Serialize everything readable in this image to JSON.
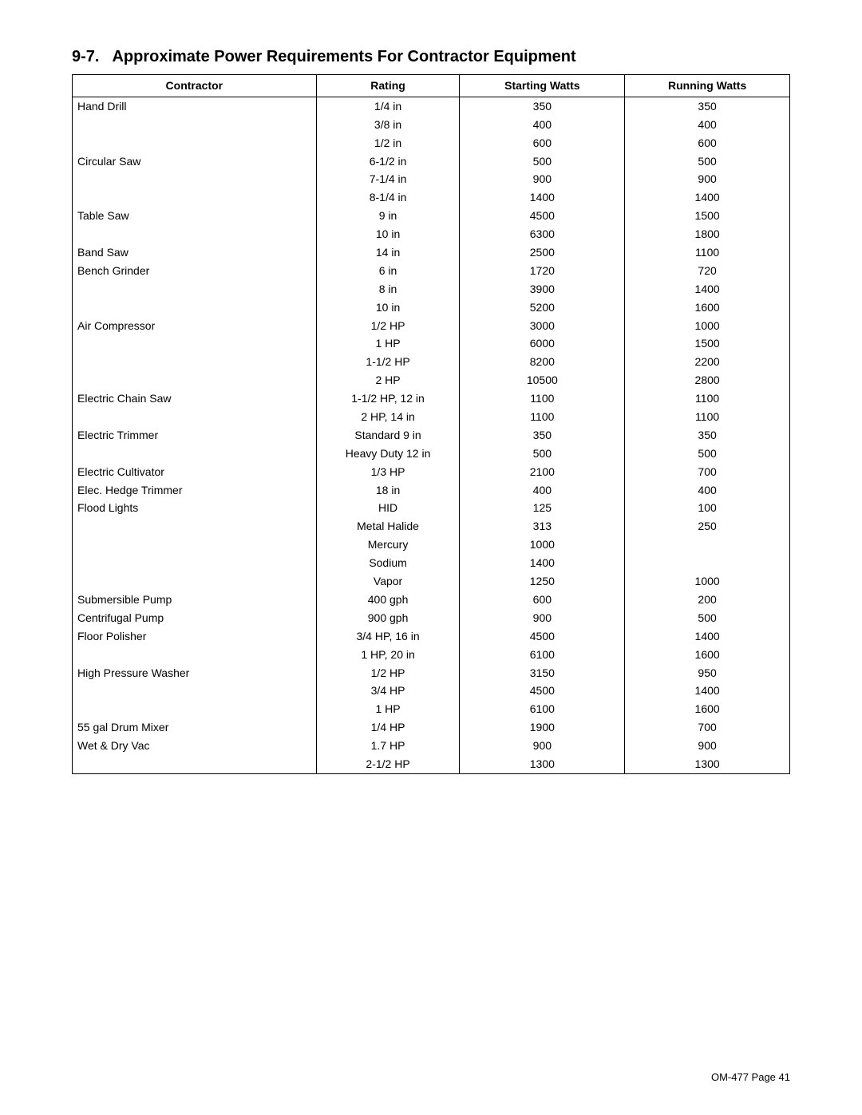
{
  "section": {
    "number": "9-7.",
    "title": "Approximate Power Requirements For Contractor Equipment"
  },
  "table": {
    "columns": [
      "Contractor",
      "Rating",
      "Starting Watts",
      "Running Watts"
    ],
    "rows": [
      {
        "contractor": "Hand Drill",
        "rating": "1/4 in",
        "starting": "350",
        "running": "350"
      },
      {
        "contractor": "",
        "rating": "3/8 in",
        "starting": "400",
        "running": "400"
      },
      {
        "contractor": "",
        "rating": "1/2 in",
        "starting": "600",
        "running": "600"
      },
      {
        "contractor": "Circular Saw",
        "rating": "6-1/2 in",
        "starting": "500",
        "running": "500"
      },
      {
        "contractor": "",
        "rating": "7-1/4 in",
        "starting": "900",
        "running": "900"
      },
      {
        "contractor": "",
        "rating": "8-1/4 in",
        "starting": "1400",
        "running": "1400"
      },
      {
        "contractor": "Table Saw",
        "rating": "9 in",
        "starting": "4500",
        "running": "1500"
      },
      {
        "contractor": "",
        "rating": "10 in",
        "starting": "6300",
        "running": "1800"
      },
      {
        "contractor": "Band Saw",
        "rating": "14 in",
        "starting": "2500",
        "running": "1100"
      },
      {
        "contractor": "Bench Grinder",
        "rating": "6 in",
        "starting": "1720",
        "running": "720"
      },
      {
        "contractor": "",
        "rating": "8 in",
        "starting": "3900",
        "running": "1400"
      },
      {
        "contractor": "",
        "rating": "10 in",
        "starting": "5200",
        "running": "1600"
      },
      {
        "contractor": "Air Compressor",
        "rating": "1/2 HP",
        "starting": "3000",
        "running": "1000"
      },
      {
        "contractor": "",
        "rating": "1 HP",
        "starting": "6000",
        "running": "1500"
      },
      {
        "contractor": "",
        "rating": "1-1/2 HP",
        "starting": "8200",
        "running": "2200"
      },
      {
        "contractor": "",
        "rating": "2 HP",
        "starting": "10500",
        "running": "2800"
      },
      {
        "contractor": "Electric Chain Saw",
        "rating": "1-1/2 HP, 12 in",
        "starting": "1100",
        "running": "1100"
      },
      {
        "contractor": "",
        "rating": "2 HP, 14 in",
        "starting": "1100",
        "running": "1100"
      },
      {
        "contractor": "Electric Trimmer",
        "rating": "Standard 9 in",
        "starting": "350",
        "running": "350"
      },
      {
        "contractor": "",
        "rating": "Heavy Duty 12 in",
        "starting": "500",
        "running": "500"
      },
      {
        "contractor": "Electric Cultivator",
        "rating": "1/3 HP",
        "starting": "2100",
        "running": "700"
      },
      {
        "contractor": "Elec. Hedge Trimmer",
        "rating": "18 in",
        "starting": "400",
        "running": "400"
      },
      {
        "contractor": "Flood Lights",
        "rating": "HID",
        "starting": "125",
        "running": "100"
      },
      {
        "contractor": "",
        "rating": "Metal Halide",
        "starting": "313",
        "running": "250"
      },
      {
        "contractor": "",
        "rating": "Mercury",
        "starting": "1000",
        "running": ""
      },
      {
        "contractor": "",
        "rating": "Sodium",
        "starting": "1400",
        "running": ""
      },
      {
        "contractor": "",
        "rating": "Vapor",
        "starting": "1250",
        "running": "1000"
      },
      {
        "contractor": "Submersible Pump",
        "rating": "400 gph",
        "starting": "600",
        "running": "200"
      },
      {
        "contractor": "Centrifugal Pump",
        "rating": "900 gph",
        "starting": "900",
        "running": "500"
      },
      {
        "contractor": "Floor Polisher",
        "rating": "3/4 HP, 16 in",
        "starting": "4500",
        "running": "1400"
      },
      {
        "contractor": "",
        "rating": "1 HP, 20 in",
        "starting": "6100",
        "running": "1600"
      },
      {
        "contractor": "High Pressure Washer",
        "rating": "1/2 HP",
        "starting": "3150",
        "running": "950"
      },
      {
        "contractor": "",
        "rating": "3/4 HP",
        "starting": "4500",
        "running": "1400"
      },
      {
        "contractor": "",
        "rating": "1 HP",
        "starting": "6100",
        "running": "1600"
      },
      {
        "contractor": "55 gal Drum Mixer",
        "rating": "1/4 HP",
        "starting": "1900",
        "running": "700"
      },
      {
        "contractor": "Wet & Dry Vac",
        "rating": "1.7 HP",
        "starting": "900",
        "running": "900"
      },
      {
        "contractor": "",
        "rating": "2-1/2 HP",
        "starting": "1300",
        "running": "1300"
      }
    ]
  },
  "footer": "OM-477 Page 41"
}
